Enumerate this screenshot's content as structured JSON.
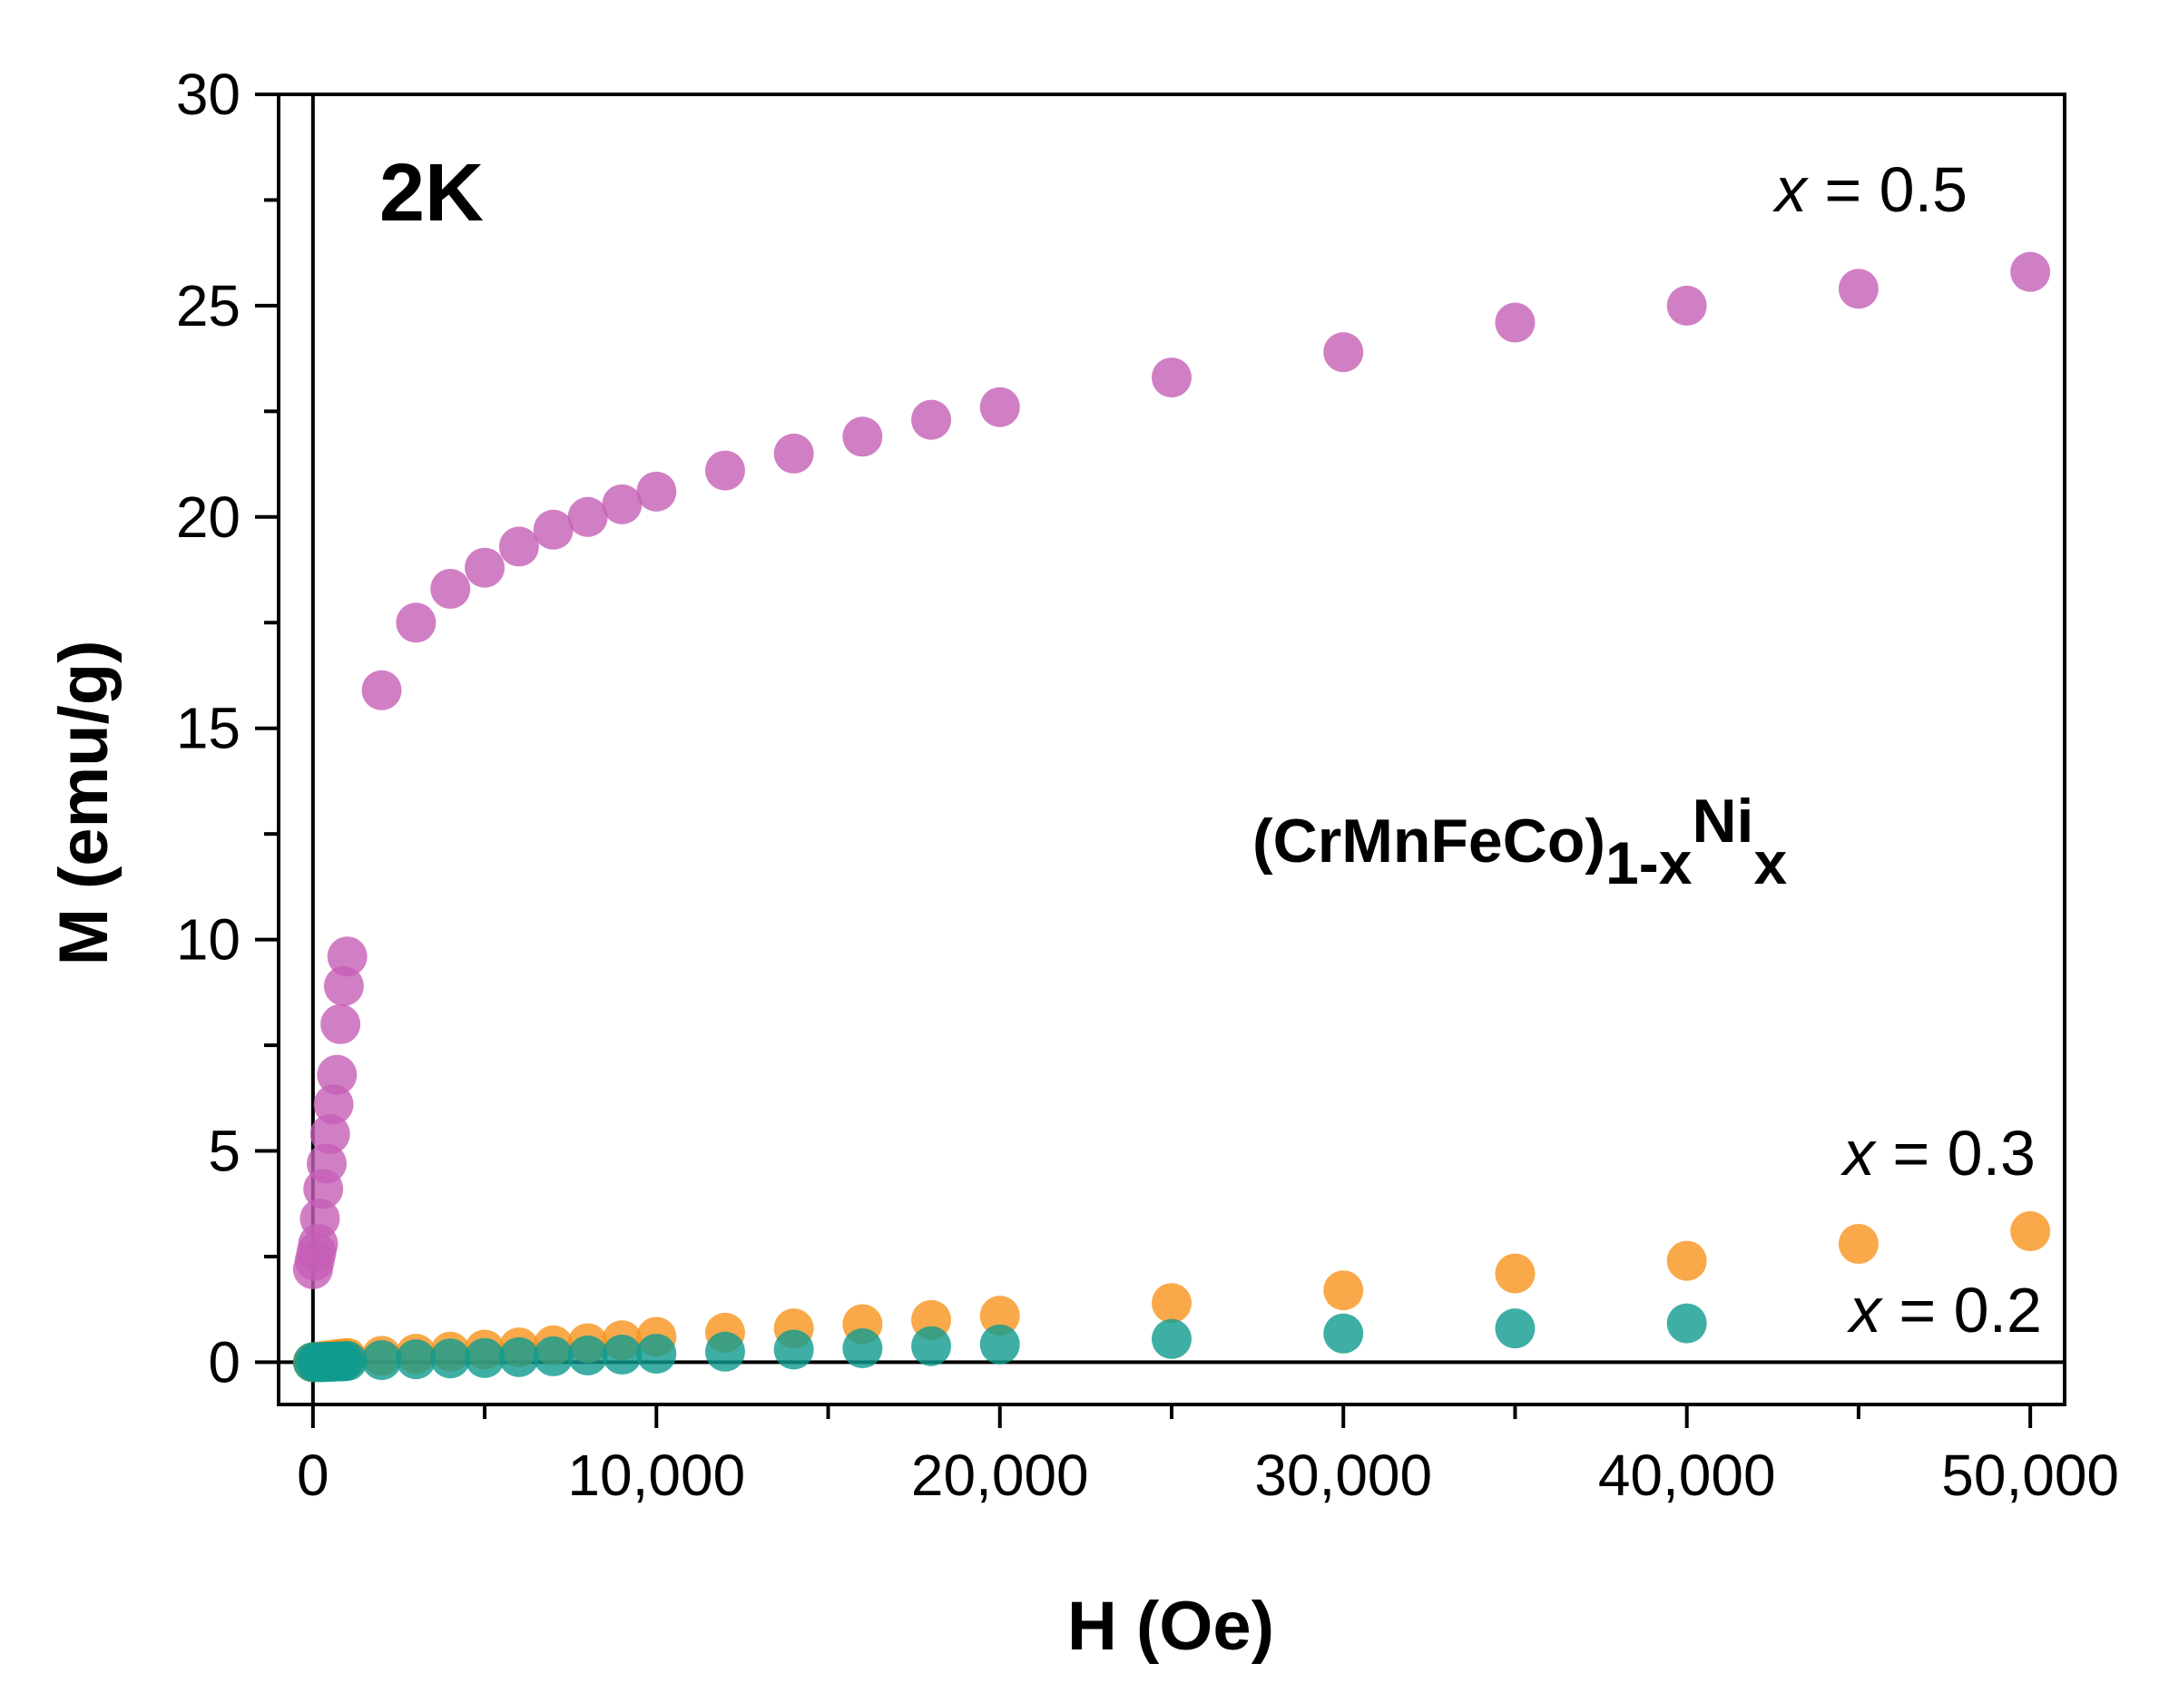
{
  "chart_data": {
    "type": "scatter",
    "title": "",
    "panel_label": "2K",
    "annotation": {
      "base": "(CrMnFeCo)",
      "sub1": "1-x",
      "sup": "Ni",
      "sub2": "x"
    },
    "xlabel": "H (Oe)",
    "ylabel": "M (emu/g)",
    "xlim": [
      -1000,
      51000
    ],
    "ylim": [
      -1,
      30
    ],
    "xticks": [
      0,
      10000,
      20000,
      30000,
      40000,
      50000
    ],
    "xtick_labels": [
      "0",
      "10,000",
      "20,000",
      "30,000",
      "40,000",
      "50,000"
    ],
    "yticks": [
      0,
      5,
      10,
      15,
      20,
      25,
      30
    ],
    "ytick_labels": [
      "0",
      "5",
      "10",
      "15",
      "20",
      "25",
      "30"
    ],
    "grid": false,
    "series": [
      {
        "name": "x = 0.5",
        "label_var": "x",
        "label_value": "= 0.5",
        "color": "#c55fb6",
        "x": [
          0,
          50,
          100,
          150,
          200,
          300,
          400,
          500,
          600,
          700,
          800,
          900,
          1000,
          2000,
          3000,
          4000,
          5000,
          6000,
          7000,
          8000,
          9000,
          10000,
          12000,
          14000,
          16000,
          18000,
          20000,
          25000,
          30000,
          35000,
          40000,
          45000,
          50000
        ],
        "y": [
          2.2,
          2.4,
          2.6,
          2.8,
          3.4,
          4.1,
          4.7,
          5.4,
          6.1,
          6.8,
          8.0,
          8.9,
          9.6,
          15.9,
          17.5,
          18.3,
          18.8,
          19.3,
          19.7,
          20.0,
          20.3,
          20.6,
          21.1,
          21.5,
          21.9,
          22.3,
          22.6,
          23.3,
          23.9,
          24.6,
          25.0,
          25.4,
          25.8
        ]
      },
      {
        "name": "x = 0.3",
        "label_var": "x",
        "label_value": "= 0.3",
        "color": "#f7941d",
        "x": [
          0,
          100,
          200,
          300,
          400,
          500,
          600,
          700,
          800,
          900,
          1000,
          2000,
          3000,
          4000,
          5000,
          6000,
          7000,
          8000,
          9000,
          10000,
          12000,
          14000,
          16000,
          18000,
          20000,
          25000,
          30000,
          35000,
          40000,
          45000,
          50000
        ],
        "y": [
          0.0,
          0.01,
          0.02,
          0.03,
          0.04,
          0.05,
          0.06,
          0.07,
          0.08,
          0.09,
          0.1,
          0.15,
          0.2,
          0.25,
          0.3,
          0.35,
          0.4,
          0.45,
          0.52,
          0.6,
          0.7,
          0.8,
          0.9,
          1.0,
          1.1,
          1.4,
          1.7,
          2.1,
          2.4,
          2.8,
          3.1
        ]
      },
      {
        "name": "x = 0.2",
        "label_var": "x",
        "label_value": "= 0.2",
        "color": "#0f9b8e",
        "x": [
          0,
          100,
          200,
          300,
          400,
          500,
          600,
          700,
          800,
          900,
          1000,
          2000,
          3000,
          4000,
          5000,
          6000,
          7000,
          8000,
          9000,
          10000,
          12000,
          14000,
          16000,
          18000,
          20000,
          25000,
          30000,
          35000,
          40000
        ],
        "y": [
          0.0,
          0.0,
          0.0,
          0.0,
          0.01,
          0.01,
          0.01,
          0.02,
          0.02,
          0.02,
          0.03,
          0.05,
          0.07,
          0.09,
          0.1,
          0.12,
          0.14,
          0.16,
          0.18,
          0.2,
          0.25,
          0.3,
          0.33,
          0.38,
          0.42,
          0.55,
          0.68,
          0.8,
          0.92
        ]
      }
    ]
  }
}
